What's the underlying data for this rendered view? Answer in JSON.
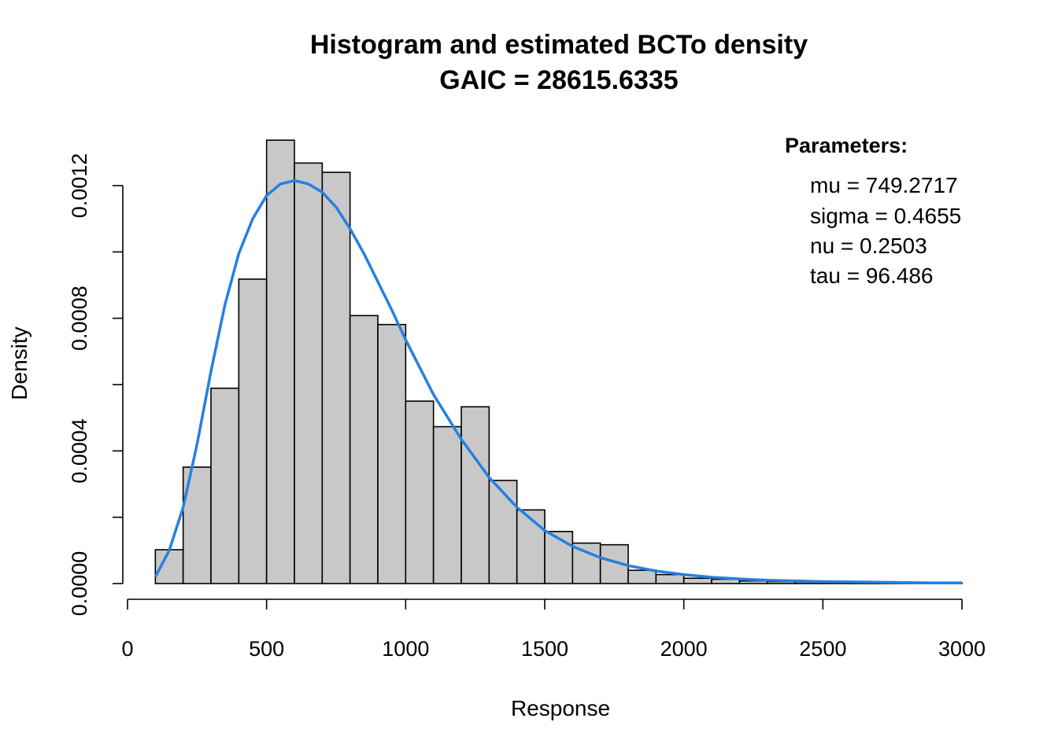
{
  "chart_data": {
    "type": "bar",
    "title_line1": "Histogram and estimated BCTo density",
    "title_line2": "GAIC = 28615.6335",
    "xlabel": "Response",
    "ylabel": "Density",
    "xlim": [
      0,
      3000
    ],
    "ylim": [
      0,
      0.0012
    ],
    "x_ticks": [
      0,
      500,
      1000,
      1500,
      2000,
      2500,
      3000
    ],
    "x_tick_labels": [
      "0",
      "500",
      "1000",
      "1500",
      "2000",
      "2500",
      "3000"
    ],
    "y_ticks": [
      0,
      0.0002,
      0.0004,
      0.0006,
      0.0008,
      0.001,
      0.0012
    ],
    "y_tick_labels": [
      "0.0000",
      "",
      "0.0004",
      "",
      "0.0008",
      "",
      "0.0012"
    ],
    "bin_edges": [
      100,
      200,
      300,
      400,
      500,
      600,
      700,
      800,
      900,
      1000,
      1100,
      1200,
      1300,
      1400,
      1500,
      1600,
      1700,
      1800,
      1900,
      2000,
      2100,
      2200,
      2300,
      2400,
      2500,
      2600,
      2700,
      2800,
      2900,
      3000
    ],
    "densities": [
      0.000102,
      0.000351,
      0.000589,
      0.000918,
      0.001337,
      0.001268,
      0.00124,
      0.000808,
      0.000781,
      0.00055,
      0.000473,
      0.000533,
      0.000311,
      0.000222,
      0.000157,
      0.000122,
      0.000117,
      4e-05,
      2.7e-05,
      1.6e-05,
      1.3e-05,
      8e-06,
      6e-06,
      5e-06,
      5e-06,
      3e-06,
      2e-06,
      2e-06,
      2e-06
    ],
    "bar_color": "#c8c8c8",
    "density_curve": {
      "color": "#2680e0",
      "x": [
        100,
        150,
        200,
        250,
        300,
        350,
        400,
        450,
        500,
        550,
        600,
        650,
        700,
        750,
        800,
        850,
        900,
        950,
        1000,
        1100,
        1200,
        1300,
        1400,
        1500,
        1600,
        1700,
        1800,
        1900,
        2000,
        2100,
        2200,
        2300,
        2400,
        2500,
        2600,
        2700,
        2800,
        2900,
        3000
      ],
      "y": [
        2e-05,
        0.0001,
        0.00023,
        0.00042,
        0.00064,
        0.00084,
        0.000995,
        0.0011,
        0.00117,
        0.001205,
        0.001215,
        0.001205,
        0.00118,
        0.001135,
        0.00107,
        0.000995,
        0.00091,
        0.000825,
        0.000735,
        0.00057,
        0.000435,
        0.00032,
        0.00023,
        0.00016,
        0.000112,
        7.8e-05,
        5.4e-05,
        3.8e-05,
        2.7e-05,
        1.9e-05,
        1.4e-05,
        1e-05,
        8e-06,
        6e-06,
        5e-06,
        4e-06,
        3e-06,
        2e-06,
        2e-06
      ]
    },
    "legend": {
      "title": "Parameters:",
      "placement": "top-right",
      "items": [
        "mu = 749.2717",
        "sigma = 0.4655",
        "nu = 0.2503",
        "tau = 96.486"
      ]
    }
  }
}
